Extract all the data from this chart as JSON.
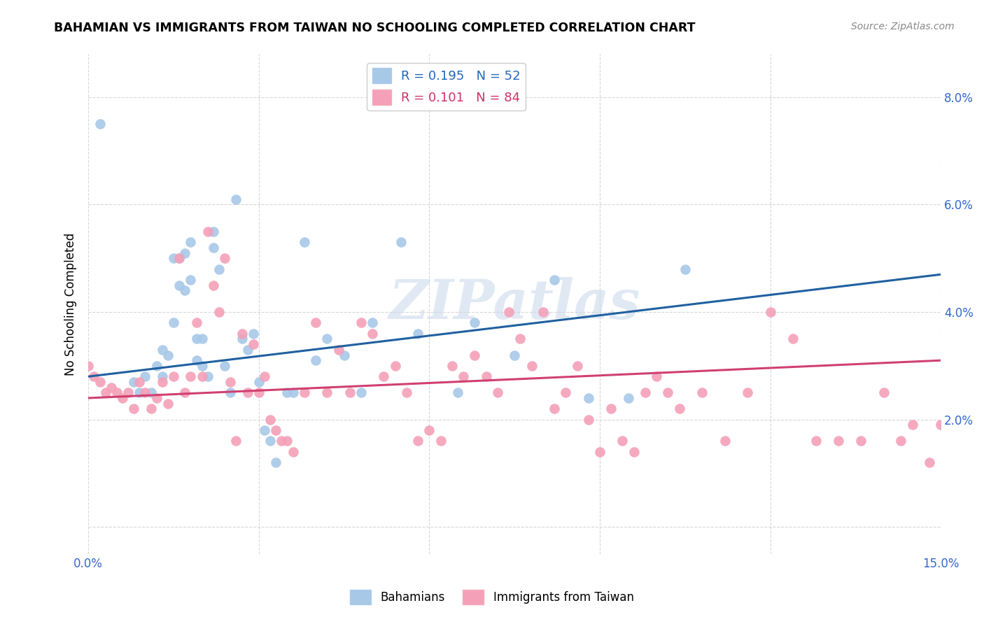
{
  "title": "BAHAMIAN VS IMMIGRANTS FROM TAIWAN NO SCHOOLING COMPLETED CORRELATION CHART",
  "source": "Source: ZipAtlas.com",
  "ylabel": "No Schooling Completed",
  "xlim": [
    0.0,
    0.15
  ],
  "ylim": [
    -0.005,
    0.088
  ],
  "xtick_positions": [
    0.0,
    0.03,
    0.06,
    0.09,
    0.12,
    0.15
  ],
  "ytick_positions": [
    0.0,
    0.02,
    0.04,
    0.06,
    0.08
  ],
  "blue_color": "#a8c8e8",
  "pink_color": "#f4a0b8",
  "blue_line_color": "#2060a0",
  "pink_line_color": "#d04070",
  "watermark": "ZIPatlas",
  "blue_R": 0.195,
  "blue_N": 52,
  "pink_R": 0.101,
  "pink_N": 84,
  "blue_scatter_x": [
    0.002,
    0.008,
    0.009,
    0.01,
    0.011,
    0.012,
    0.013,
    0.013,
    0.014,
    0.015,
    0.015,
    0.016,
    0.016,
    0.017,
    0.017,
    0.018,
    0.018,
    0.019,
    0.019,
    0.02,
    0.02,
    0.021,
    0.022,
    0.022,
    0.023,
    0.024,
    0.025,
    0.026,
    0.027,
    0.028,
    0.029,
    0.03,
    0.031,
    0.032,
    0.033,
    0.035,
    0.036,
    0.038,
    0.04,
    0.042,
    0.045,
    0.048,
    0.05,
    0.055,
    0.058,
    0.065,
    0.068,
    0.075,
    0.082,
    0.088,
    0.095,
    0.105
  ],
  "blue_scatter_y": [
    0.075,
    0.027,
    0.025,
    0.028,
    0.025,
    0.03,
    0.028,
    0.033,
    0.032,
    0.038,
    0.05,
    0.05,
    0.045,
    0.051,
    0.044,
    0.053,
    0.046,
    0.035,
    0.031,
    0.035,
    0.03,
    0.028,
    0.052,
    0.055,
    0.048,
    0.03,
    0.025,
    0.061,
    0.035,
    0.033,
    0.036,
    0.027,
    0.018,
    0.016,
    0.012,
    0.025,
    0.025,
    0.053,
    0.031,
    0.035,
    0.032,
    0.025,
    0.038,
    0.053,
    0.036,
    0.025,
    0.038,
    0.032,
    0.046,
    0.024,
    0.024,
    0.048
  ],
  "pink_scatter_x": [
    0.0,
    0.001,
    0.002,
    0.003,
    0.004,
    0.005,
    0.006,
    0.007,
    0.008,
    0.009,
    0.01,
    0.011,
    0.012,
    0.013,
    0.014,
    0.015,
    0.016,
    0.017,
    0.018,
    0.019,
    0.02,
    0.021,
    0.022,
    0.023,
    0.024,
    0.025,
    0.026,
    0.027,
    0.028,
    0.029,
    0.03,
    0.031,
    0.032,
    0.033,
    0.034,
    0.035,
    0.036,
    0.038,
    0.04,
    0.042,
    0.044,
    0.046,
    0.048,
    0.05,
    0.052,
    0.054,
    0.056,
    0.058,
    0.06,
    0.062,
    0.064,
    0.066,
    0.068,
    0.07,
    0.072,
    0.074,
    0.076,
    0.078,
    0.08,
    0.082,
    0.084,
    0.086,
    0.088,
    0.09,
    0.092,
    0.094,
    0.096,
    0.098,
    0.1,
    0.102,
    0.104,
    0.108,
    0.112,
    0.116,
    0.12,
    0.124,
    0.128,
    0.132,
    0.136,
    0.14,
    0.143,
    0.145,
    0.148,
    0.15
  ],
  "pink_scatter_y": [
    0.03,
    0.028,
    0.027,
    0.025,
    0.026,
    0.025,
    0.024,
    0.025,
    0.022,
    0.027,
    0.025,
    0.022,
    0.024,
    0.027,
    0.023,
    0.028,
    0.05,
    0.025,
    0.028,
    0.038,
    0.028,
    0.055,
    0.045,
    0.04,
    0.05,
    0.027,
    0.016,
    0.036,
    0.025,
    0.034,
    0.025,
    0.028,
    0.02,
    0.018,
    0.016,
    0.016,
    0.014,
    0.025,
    0.038,
    0.025,
    0.033,
    0.025,
    0.038,
    0.036,
    0.028,
    0.03,
    0.025,
    0.016,
    0.018,
    0.016,
    0.03,
    0.028,
    0.032,
    0.028,
    0.025,
    0.04,
    0.035,
    0.03,
    0.04,
    0.022,
    0.025,
    0.03,
    0.02,
    0.014,
    0.022,
    0.016,
    0.014,
    0.025,
    0.028,
    0.025,
    0.022,
    0.025,
    0.016,
    0.025,
    0.04,
    0.035,
    0.016,
    0.016,
    0.016,
    0.025,
    0.016,
    0.019,
    0.012,
    0.019
  ]
}
